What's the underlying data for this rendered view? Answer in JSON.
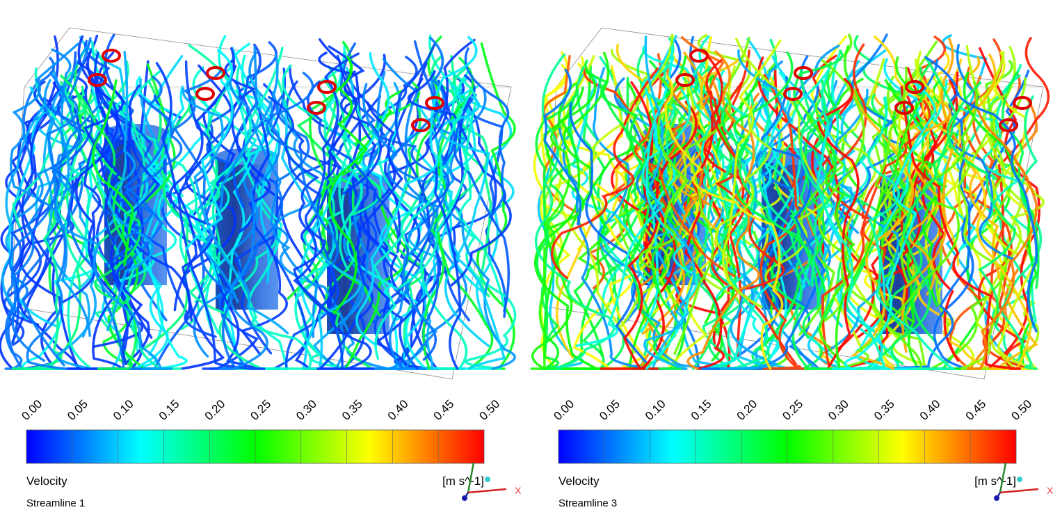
{
  "panels": [
    {
      "title": "Streamline 1",
      "axis_label": "X",
      "colorbar": {
        "quantity": "Velocity",
        "unit": "[m s^-1]",
        "ticks": [
          "0.00",
          "0.05",
          "0.10",
          "0.15",
          "0.20",
          "0.25",
          "0.30",
          "0.35",
          "0.40",
          "0.45",
          "0.50"
        ]
      }
    },
    {
      "title": "Streamline 3",
      "axis_label": "X",
      "colorbar": {
        "quantity": "Velocity",
        "unit": "[m s^-1]",
        "ticks": [
          "0.00",
          "0.05",
          "0.10",
          "0.15",
          "0.20",
          "0.25",
          "0.30",
          "0.35",
          "0.40",
          "0.45",
          "0.50"
        ]
      }
    }
  ]
}
